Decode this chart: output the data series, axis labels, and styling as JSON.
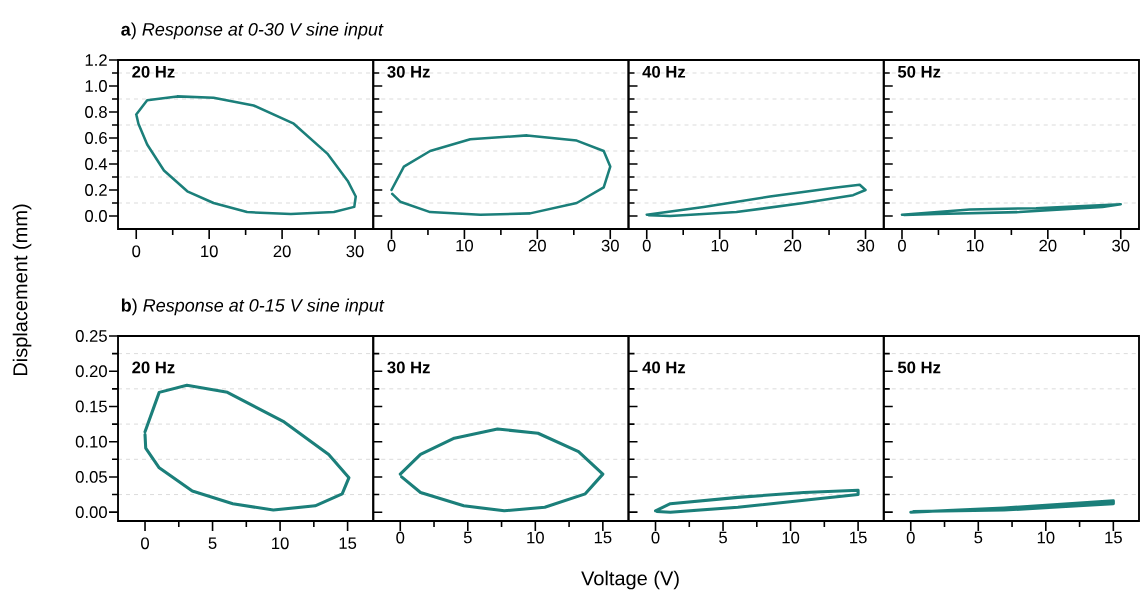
{
  "chart_data": [
    {
      "type": "line",
      "title": "**a**) *Response at 0-30 V sine input*",
      "ylabel": "Displacement (mm)",
      "annotations": [
        "20 Hz"
      ],
      "xlim": [
        -2.5,
        32.5
      ],
      "ylim": [
        -0.1,
        1.2
      ],
      "xticks": [
        0,
        10,
        20,
        30
      ],
      "yticks": [
        {
          "value": 0,
          "label": "0.0"
        },
        0.2,
        0.4,
        0.6,
        0.8,
        {
          "value": 1,
          "label": "1.0"
        },
        1.2
      ],
      "grid": "y",
      "color": "#1b7f7a",
      "x": [
        0,
        1.5,
        5.6,
        10.6,
        16.1,
        21.6,
        26.2,
        29,
        30.1,
        29.9,
        27.1,
        21.2,
        15.2,
        10.6,
        7,
        3.8,
        1.5,
        0.3,
        0.05
      ],
      "values": [
        0.78,
        0.89,
        0.92,
        0.91,
        0.85,
        0.71,
        0.48,
        0.27,
        0.15,
        0.07,
        0.03,
        0.015,
        0.03,
        0.1,
        0.19,
        0.35,
        0.55,
        0.71,
        0.77
      ]
    },
    {
      "type": "line",
      "annotations": [
        "30 Hz"
      ],
      "tick_labels": "x",
      "xlim": [
        -2.5,
        32.5
      ],
      "ylim": [
        -0.1,
        1.2
      ],
      "xticks": [
        0,
        10,
        20,
        30
      ],
      "yticks": [
        0,
        0.2,
        0.4,
        0.6,
        0.8,
        1,
        1.2
      ],
      "grid": "y",
      "color": "#1b7f7a",
      "x": [
        0,
        1.7,
        5.3,
        10.8,
        18.6,
        25.4,
        29.1,
        30,
        29.1,
        25.4,
        19,
        12.2,
        5.3,
        1.2,
        0.1
      ],
      "values": [
        0.2,
        0.38,
        0.5,
        0.59,
        0.62,
        0.58,
        0.5,
        0.38,
        0.22,
        0.1,
        0.02,
        0.01,
        0.03,
        0.11,
        0.17
      ]
    },
    {
      "type": "line",
      "annotations": [
        "40 Hz"
      ],
      "tick_labels": "x",
      "xlim": [
        -2.5,
        32.5
      ],
      "ylim": [
        -0.1,
        1.2
      ],
      "xticks": [
        0,
        10,
        20,
        30
      ],
      "yticks": [
        0,
        0.2,
        0.4,
        0.6,
        0.8,
        1,
        1.2
      ],
      "grid": "y",
      "color": "#1b7f7a",
      "x": [
        0,
        7.8,
        16.9,
        26,
        29.2,
        30,
        28.3,
        21.5,
        12.3,
        3.2,
        0.3
      ],
      "values": [
        0.01,
        0.07,
        0.15,
        0.22,
        0.24,
        0.2,
        0.16,
        0.1,
        0.03,
        0,
        0.005
      ]
    },
    {
      "type": "line",
      "annotations": [
        "50 Hz"
      ],
      "tick_labels": "x",
      "xlim": [
        -2.5,
        32.5
      ],
      "ylim": [
        -0.1,
        1.2
      ],
      "xticks": [
        0,
        10,
        20,
        30
      ],
      "yticks": [
        0,
        0.2,
        0.4,
        0.6,
        0.8,
        1,
        1.2
      ],
      "grid": "y",
      "color": "#1b7f7a",
      "x": [
        0,
        9.3,
        18.4,
        30,
        27.5,
        16.1,
        4.8,
        0.3
      ],
      "values": [
        0.01,
        0.05,
        0.06,
        0.09,
        0.07,
        0.03,
        0.015,
        0.008
      ]
    },
    {
      "type": "line",
      "title": "**b**) *Response at 0-15 V sine input*",
      "annotations": [
        "20 Hz"
      ],
      "xlim": [
        -2,
        16.9
      ],
      "ylim": [
        -0.0125,
        0.25
      ],
      "xticks": [
        0,
        5,
        10,
        15
      ],
      "yticks": [
        {
          "value": 0,
          "label": "0.00"
        },
        0.05,
        {
          "value": 0.1,
          "label": "0.10"
        },
        0.15,
        {
          "value": 0.2,
          "label": "0.20"
        },
        0.25
      ],
      "grid": "y",
      "color": "#1b7f7a",
      "x": [
        0,
        1.05,
        3.1,
        6.1,
        10.3,
        13.6,
        15.1,
        14.6,
        12.6,
        9.5,
        6.5,
        3.5,
        1.05,
        0.05,
        0
      ],
      "values": [
        0.114,
        0.17,
        0.18,
        0.17,
        0.128,
        0.082,
        0.049,
        0.026,
        0.009,
        0.003,
        0.012,
        0.03,
        0.063,
        0.091,
        0.11
      ]
    },
    {
      "type": "line",
      "xlabel": "Voltage (V)",
      "annotations": [
        "30 Hz"
      ],
      "tick_labels": "x",
      "xlim": [
        -2,
        16.9
      ],
      "ylim": [
        -0.0125,
        0.25
      ],
      "xticks": [
        0,
        5,
        10,
        15
      ],
      "yticks": [
        0,
        0.05,
        0.1,
        0.15,
        0.2,
        0.25
      ],
      "grid": "y",
      "color": "#1b7f7a",
      "x": [
        0,
        1.5,
        4,
        7.2,
        10.2,
        13.2,
        15,
        13.7,
        10.7,
        7.7,
        4.7,
        1.5,
        0.1
      ],
      "values": [
        0.054,
        0.082,
        0.105,
        0.118,
        0.112,
        0.086,
        0.054,
        0.026,
        0.007,
        0.002,
        0.009,
        0.028,
        0.05
      ]
    },
    {
      "type": "line",
      "annotations": [
        "40 Hz"
      ],
      "tick_labels": "x",
      "xlim": [
        -2,
        16.9
      ],
      "ylim": [
        -0.0125,
        0.25
      ],
      "xticks": [
        0,
        5,
        10,
        15
      ],
      "yticks": [
        0,
        0.05,
        0.1,
        0.15,
        0.2,
        0.25
      ],
      "grid": "y",
      "color": "#1b7f7a",
      "x": [
        0,
        1.1,
        6.1,
        11,
        15,
        15,
        11,
        6.1,
        1.1,
        0.1
      ],
      "values": [
        0.002,
        0.012,
        0.021,
        0.028,
        0.031,
        0.025,
        0.017,
        0.007,
        0,
        0.001
      ]
    },
    {
      "type": "line",
      "annotations": [
        "50 Hz"
      ],
      "tick_labels": "x",
      "xlim": [
        -2,
        16.9
      ],
      "ylim": [
        -0.0125,
        0.25
      ],
      "xticks": [
        0,
        5,
        10,
        15
      ],
      "yticks": [
        0,
        0.05,
        0.1,
        0.15,
        0.2,
        0.25
      ],
      "grid": "y",
      "color": "#1b7f7a",
      "x": [
        0,
        6.9,
        15,
        15,
        6.9,
        0.2
      ],
      "values": [
        0,
        0.006,
        0.016,
        0.012,
        0.003,
        0.001
      ]
    }
  ]
}
